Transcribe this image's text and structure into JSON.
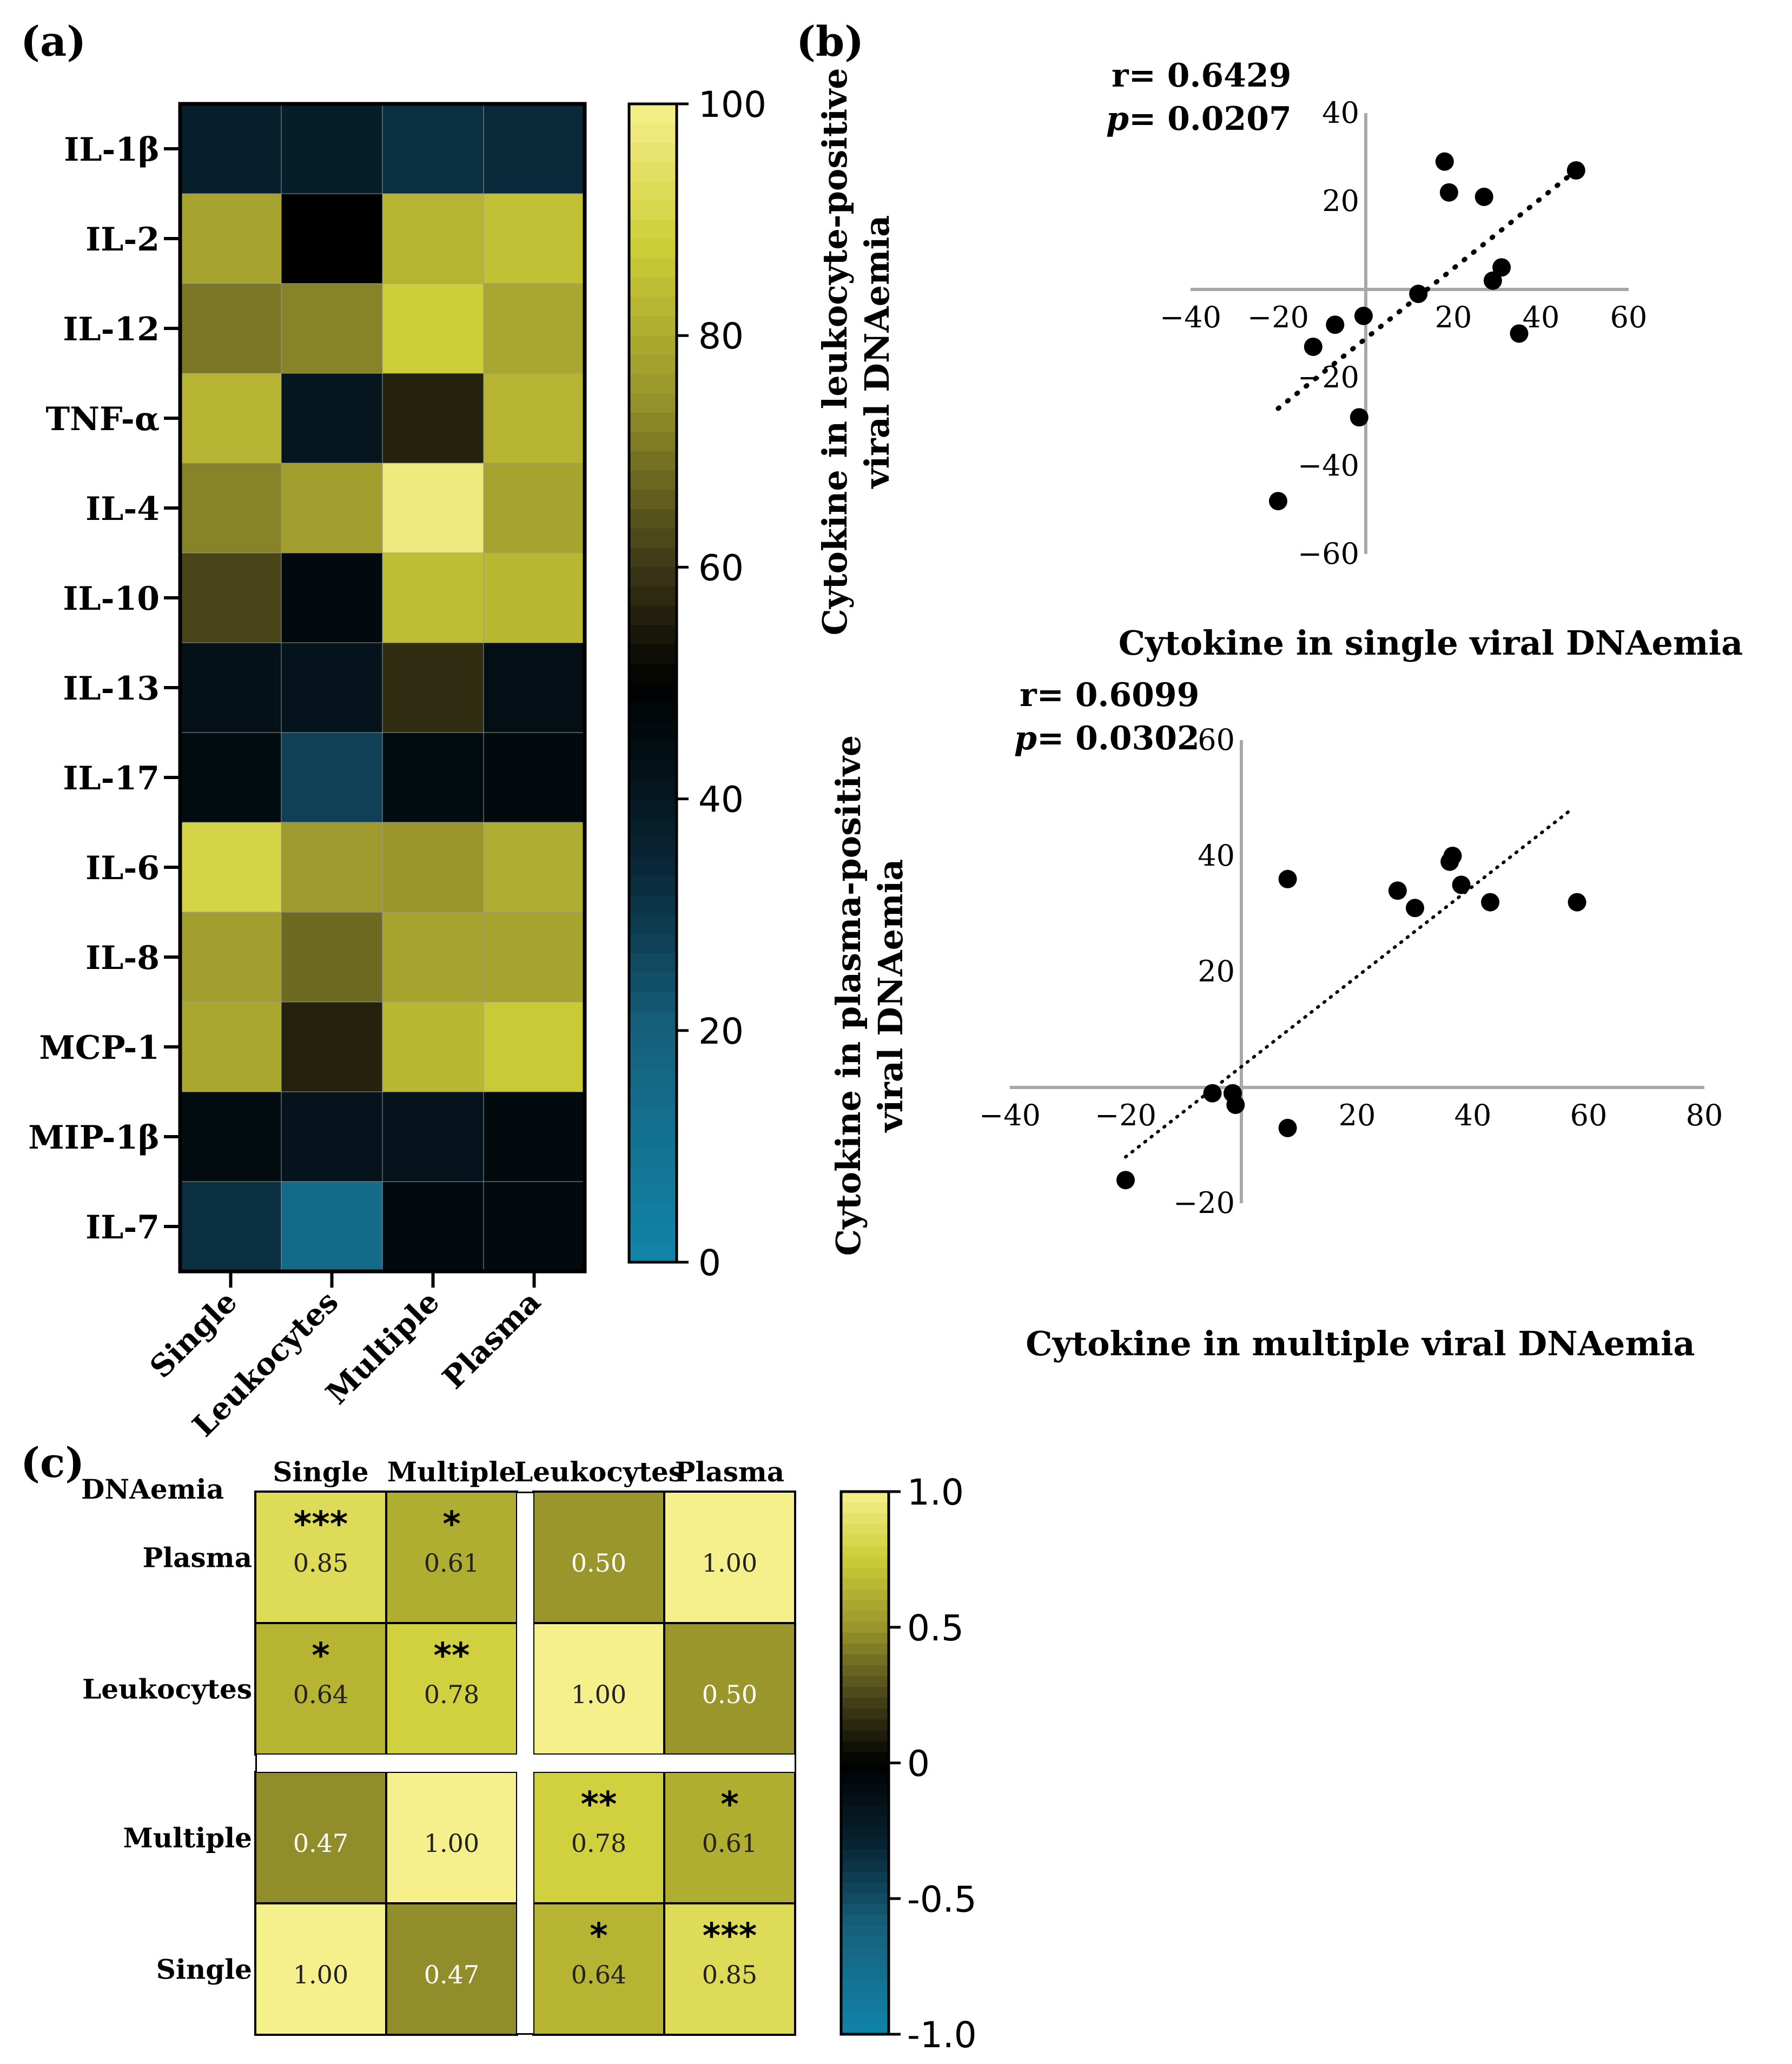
{
  "panels": {
    "a": "(a)",
    "b": "(b)",
    "c": "(c)"
  },
  "chart_data": [
    {
      "panel": "(a)",
      "type": "heatmap",
      "rows": [
        "IL-1β",
        "IL-2",
        "IL-12",
        "TNF-α",
        "IL-4",
        "IL-10",
        "IL-13",
        "IL-17",
        "IL-6",
        "IL-8",
        "MCP-1",
        "MIP-1β",
        "IL-7"
      ],
      "columns": [
        "Single",
        "Leukocytes",
        "Multiple",
        "Plasma"
      ],
      "values": [
        [
          37,
          38,
          32,
          34
        ],
        [
          78,
          50,
          82,
          85
        ],
        [
          70,
          72,
          88,
          79
        ],
        [
          82,
          41,
          56,
          82
        ],
        [
          72,
          77,
          98,
          78
        ],
        [
          62,
          46,
          84,
          83
        ],
        [
          43,
          42,
          58,
          44
        ],
        [
          45,
          28,
          45,
          46
        ],
        [
          90,
          76,
          75,
          80
        ],
        [
          77,
          68,
          78,
          78
        ],
        [
          79,
          56,
          83,
          87
        ],
        [
          45,
          42,
          42,
          46
        ],
        [
          32,
          14,
          46,
          46
        ]
      ],
      "colorbar": {
        "min": 0,
        "max": 100,
        "ticks": [
          "0",
          "20",
          "40",
          "60",
          "80",
          "100"
        ]
      }
    },
    {
      "panel": "(b) top",
      "type": "scatter",
      "xlabel": "Cytokine in single viral DNAemia",
      "ylabel_lines": [
        "Cytokine in leukocyte-positive",
        "viral DNAemia"
      ],
      "annotation": {
        "r": "r= 0.6429",
        "p_label": "p",
        "p_value": "= 0.0207"
      },
      "xlim": [
        -40,
        60
      ],
      "ylim": [
        -60,
        40
      ],
      "xticks": [
        "−40",
        "−20",
        "20",
        "40",
        "60"
      ],
      "yticks": [
        "40",
        "20",
        "−20",
        "−40",
        "−60"
      ],
      "points": [
        {
          "x": -12,
          "y": -13
        },
        {
          "x": -7,
          "y": -8
        },
        {
          "x": -0.5,
          "y": -6
        },
        {
          "x": -1.5,
          "y": -29
        },
        {
          "x": -20,
          "y": -48
        },
        {
          "x": 12,
          "y": -1
        },
        {
          "x": 18,
          "y": 29
        },
        {
          "x": 19,
          "y": 22
        },
        {
          "x": 27,
          "y": 21
        },
        {
          "x": 29,
          "y": 2
        },
        {
          "x": 31,
          "y": 5
        },
        {
          "x": 35,
          "y": -10
        },
        {
          "x": 48,
          "y": 27
        }
      ],
      "fit": {
        "x1": -20,
        "y1": -27,
        "x2": 48,
        "y2": 27
      }
    },
    {
      "panel": "(b) bottom",
      "type": "scatter",
      "xlabel": "Cytokine in multiple viral DNAemia",
      "ylabel_lines": [
        "Cytokine in plasma-positive",
        "viral DNAemia"
      ],
      "annotation": {
        "r": "r= 0.6099",
        "p_label": "p",
        "p_value": "= 0.0302"
      },
      "xlim": [
        -40,
        80
      ],
      "ylim": [
        -20,
        60
      ],
      "xticks": [
        "−40",
        "−20",
        "20",
        "40",
        "60",
        "80"
      ],
      "yticks": [
        "60",
        "40",
        "20",
        "−20"
      ],
      "points": [
        {
          "x": -20,
          "y": -16
        },
        {
          "x": -5,
          "y": -1
        },
        {
          "x": -1.5,
          "y": -1
        },
        {
          "x": -1,
          "y": -3
        },
        {
          "x": 8,
          "y": -7
        },
        {
          "x": 8,
          "y": 36
        },
        {
          "x": 27,
          "y": 34
        },
        {
          "x": 30,
          "y": 31
        },
        {
          "x": 36,
          "y": 39
        },
        {
          "x": 36.5,
          "y": 40
        },
        {
          "x": 38,
          "y": 35
        },
        {
          "x": 43,
          "y": 32
        },
        {
          "x": 58,
          "y": 32
        }
      ],
      "fit": {
        "x1": -20,
        "y1": -12,
        "x2": 57,
        "y2": 48
      }
    },
    {
      "panel": "(c)",
      "type": "heatmap",
      "corner_label": "DNAemia",
      "columns": [
        "Single",
        "Multiple",
        "Leukocytes",
        "Plasma"
      ],
      "rows": [
        "Plasma",
        "Leukocytes",
        "Multiple",
        "Single"
      ],
      "values": [
        [
          0.85,
          0.61,
          0.5,
          1.0
        ],
        [
          0.64,
          0.78,
          1.0,
          0.5
        ],
        [
          0.47,
          1.0,
          0.78,
          0.61
        ],
        [
          1.0,
          0.47,
          0.64,
          0.85
        ]
      ],
      "labels": [
        [
          "0.85",
          "0.61",
          "0.50",
          "1.00"
        ],
        [
          "0.64",
          "0.78",
          "1.00",
          "0.50"
        ],
        [
          "0.47",
          "1.00",
          "0.78",
          "0.61"
        ],
        [
          "1.00",
          "0.47",
          "0.64",
          "0.85"
        ]
      ],
      "stars": [
        [
          "***",
          "*",
          "",
          ""
        ],
        [
          "*",
          "**",
          "",
          ""
        ],
        [
          "",
          "",
          "**",
          "*"
        ],
        [
          "",
          "",
          "*",
          "***"
        ]
      ],
      "colorbar": {
        "min": -1.0,
        "max": 1.0,
        "ticks": [
          "-1.0",
          "-0.5",
          "0",
          "0.5",
          "1.0"
        ]
      }
    }
  ]
}
